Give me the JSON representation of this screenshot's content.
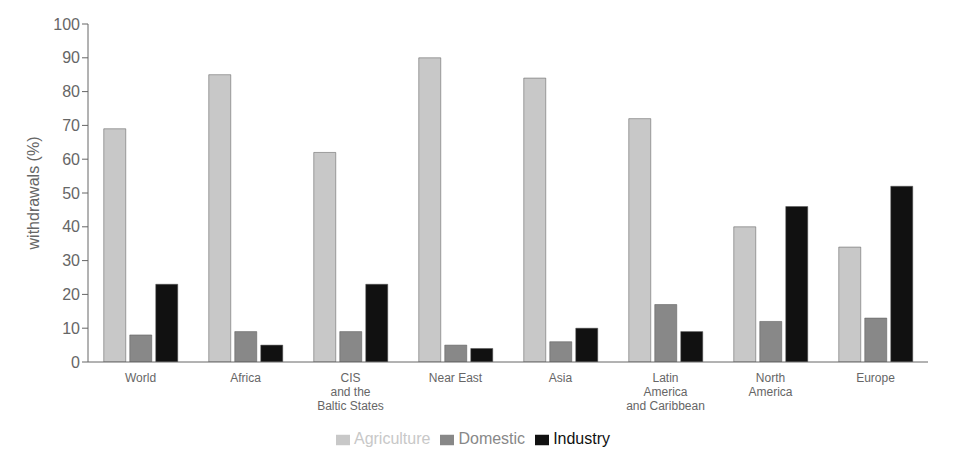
{
  "chart_data": {
    "type": "bar",
    "ylabel": "withdrawals (%)",
    "categories": [
      "World",
      "Africa",
      "CIS\nand the\nBaltic States",
      "Near East",
      "Asia",
      "Latin\nAmerica\nand Caribbean",
      "North\nAmerica",
      "Europe"
    ],
    "series": [
      {
        "name": "Agriculture",
        "color": "#c8c8c8",
        "values": [
          69,
          85,
          62,
          90,
          84,
          72,
          40,
          34
        ]
      },
      {
        "name": "Domestic",
        "color": "#888888",
        "values": [
          8,
          9,
          9,
          5,
          6,
          17,
          12,
          13
        ]
      },
      {
        "name": "Industry",
        "color": "#111111",
        "values": [
          23,
          5,
          23,
          4,
          10,
          9,
          46,
          52
        ]
      }
    ],
    "ylim": [
      0,
      100
    ],
    "yticks": [
      0,
      10,
      20,
      30,
      40,
      50,
      60,
      70,
      80,
      90,
      100
    ],
    "grid": false,
    "legend": "bottom"
  }
}
